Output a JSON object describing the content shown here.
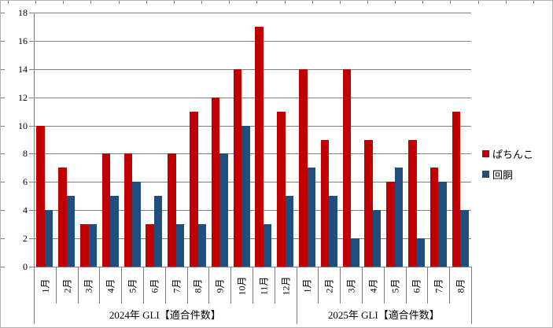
{
  "chart_data": {
    "type": "bar",
    "title": "",
    "xlabel": "",
    "ylabel": "",
    "categories": [
      "1月",
      "2月",
      "3月",
      "4月",
      "5月",
      "6月",
      "7月",
      "8月",
      "9月",
      "10月",
      "11月",
      "12月",
      "1月",
      "2月",
      "3月",
      "4月",
      "5月",
      "6月",
      "7月",
      "8月"
    ],
    "groups": [
      {
        "label": "2024年 GLI【適合件数】",
        "span": 12
      },
      {
        "label": "2025年 GLI【適合件数】",
        "span": 8
      }
    ],
    "series": [
      {
        "name": "ぱちんこ",
        "color": "#c00000",
        "values": [
          10,
          7,
          3,
          8,
          8,
          3,
          8,
          11,
          12,
          14,
          17,
          11,
          14,
          9,
          14,
          9,
          6,
          9,
          7,
          11
        ]
      },
      {
        "name": "回胴",
        "color": "#1f4e7f",
        "values": [
          4,
          5,
          3,
          5,
          6,
          5,
          3,
          3,
          8,
          10,
          3,
          5,
          7,
          5,
          2,
          4,
          7,
          2,
          6,
          4
        ]
      }
    ],
    "ylim": [
      0,
      18
    ],
    "ytick_step": 2,
    "ytick_labels": [
      "0",
      "2",
      "4",
      "6",
      "8",
      "10",
      "12",
      "14",
      "16",
      "18"
    ],
    "grid": true,
    "grid_color": "#7f7f7f",
    "legend_position": "right"
  }
}
